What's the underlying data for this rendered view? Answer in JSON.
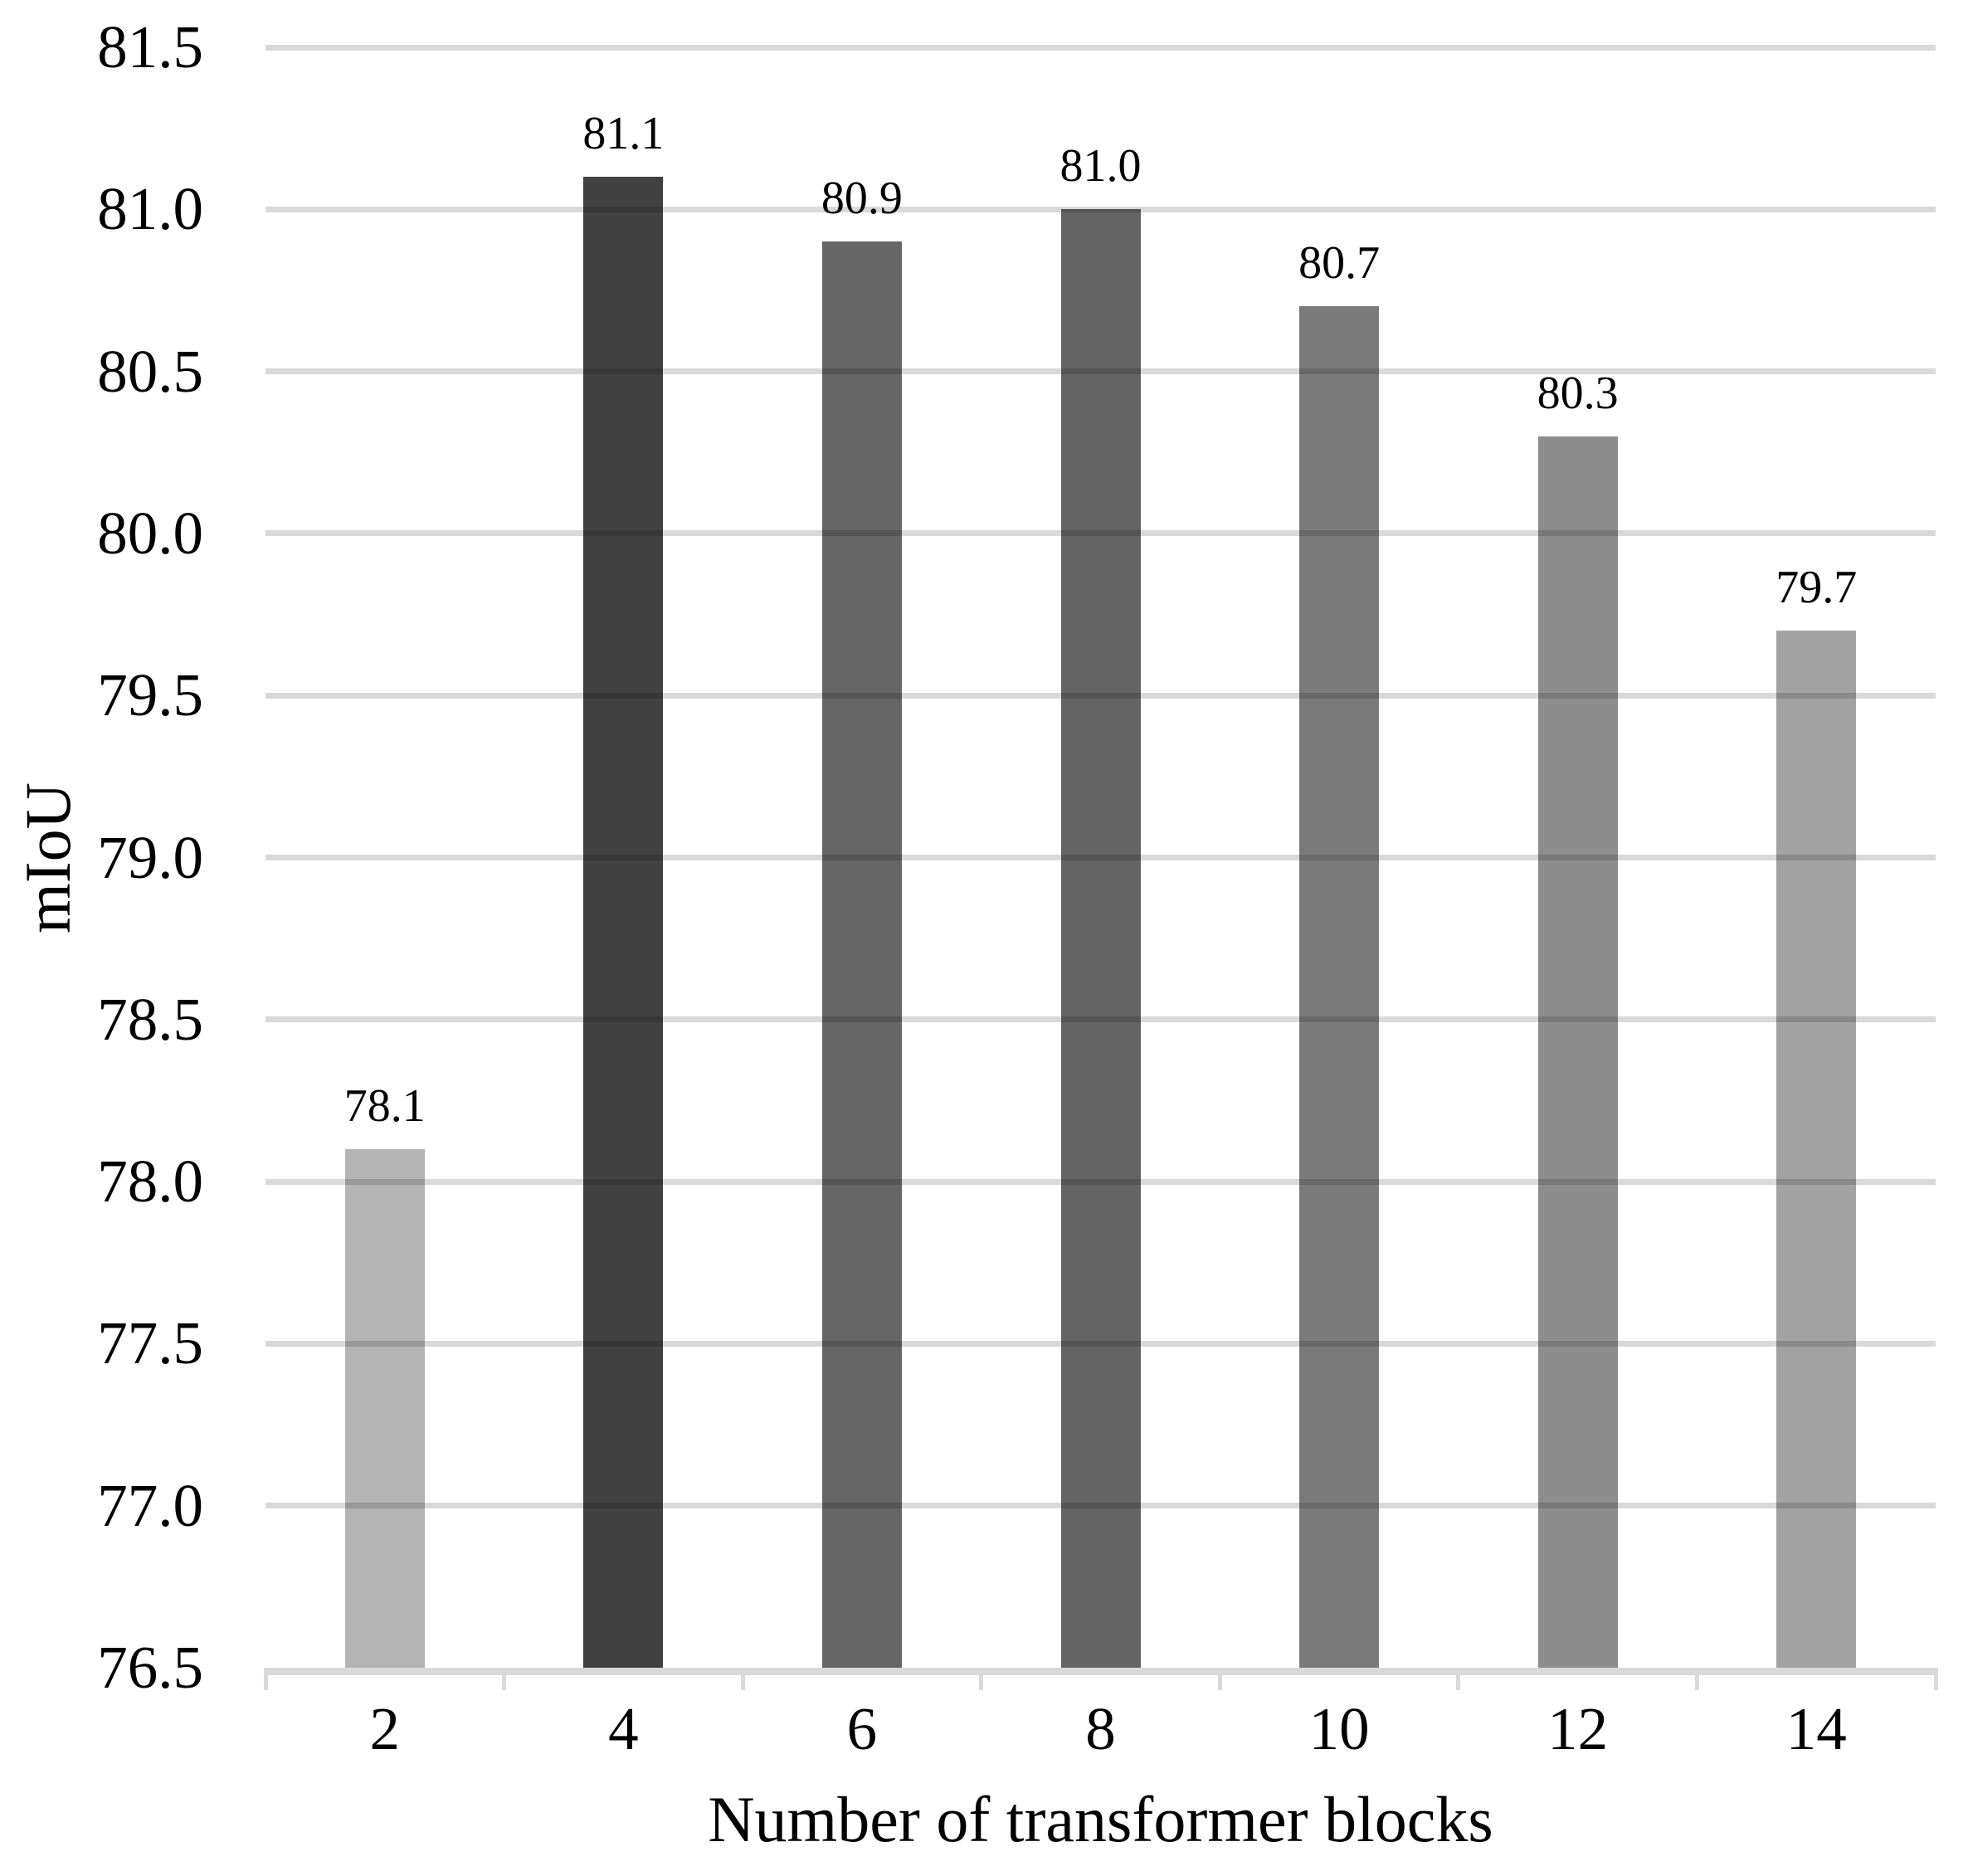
{
  "chart_data": {
    "type": "bar",
    "categories": [
      "2",
      "4",
      "6",
      "8",
      "10",
      "12",
      "14"
    ],
    "values": [
      78.1,
      81.1,
      80.9,
      81.0,
      80.7,
      80.3,
      79.7
    ],
    "bar_labels": [
      "78.1",
      "81.1",
      "80.9",
      "81.0",
      "80.7",
      "80.3",
      "79.7"
    ],
    "bar_colors": [
      "#b4b4b4",
      "#414141",
      "#666666",
      "#646464",
      "#7b7b7b",
      "#8d8d8d",
      "#a2a2a2"
    ],
    "title": "",
    "xlabel": "Number of transformer blocks",
    "ylabel": "mIoU",
    "ylim": [
      76.5,
      81.5
    ],
    "ytick_step": 0.5,
    "ytick_labels": [
      "81.5",
      "81.0",
      "80.5",
      "80.0",
      "79.5",
      "79.0",
      "78.5",
      "78.0",
      "77.5",
      "77.0",
      "76.5"
    ],
    "grid": "horizontal",
    "gridline_color": "#d9d9d9",
    "axis_line_color": "#d9d9d9",
    "text_color": "#000000",
    "background_color": "#ffffff",
    "legend": "none"
  }
}
